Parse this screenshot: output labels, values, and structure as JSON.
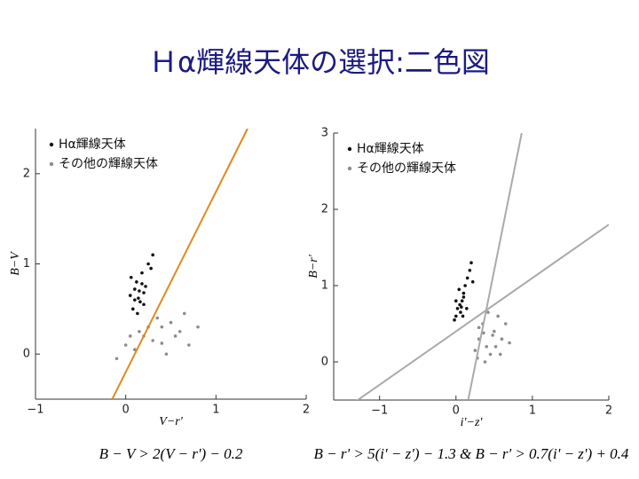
{
  "title": "Ｈα輝線天体の選択:二色図",
  "chart_data": [
    {
      "type": "scatter",
      "xlabel": "V−r'",
      "ylabel": "B−V",
      "xlim": [
        -1,
        2
      ],
      "ylim": [
        -0.5,
        2.5
      ],
      "xticks": [
        {
          "value": -1,
          "label": "−1"
        },
        0,
        1,
        2
      ],
      "yticks": [
        0,
        1,
        2
      ],
      "legend": "upper left",
      "series": [
        {
          "name": "Hα輝線天体",
          "color": "#111111",
          "x": [
            0.1,
            0.15,
            0.2,
            0.05,
            0.12,
            0.18,
            0.22,
            0.08,
            0.14,
            0.25,
            0.1,
            0.16,
            0.2,
            0.06,
            0.13,
            0.28,
            0.3,
            0.18
          ],
          "values": [
            0.6,
            0.7,
            0.55,
            0.65,
            0.8,
            0.9,
            0.75,
            0.5,
            0.62,
            1.0,
            0.72,
            0.58,
            0.68,
            0.85,
            0.45,
            0.95,
            1.1,
            0.78
          ]
        },
        {
          "name": "その他の輝線天体",
          "color": "#8c8c8c",
          "x": [
            0.0,
            0.2,
            0.4,
            0.6,
            0.3,
            0.1,
            0.5,
            0.7,
            0.25,
            0.45,
            -0.1,
            0.35,
            0.55,
            0.15,
            0.8,
            0.05,
            0.65,
            0.4
          ],
          "values": [
            0.1,
            0.2,
            0.3,
            0.25,
            0.15,
            0.05,
            0.35,
            0.1,
            0.3,
            0.0,
            -0.05,
            0.4,
            0.2,
            0.25,
            0.3,
            0.2,
            0.45,
            0.12
          ]
        }
      ],
      "lines": [
        {
          "color": "#e08a1e",
          "x": [
            -0.15,
            1.35
          ],
          "values": [
            -0.5,
            2.5
          ]
        }
      ],
      "annotation": "B − V > 2(V − r') − 0.2"
    },
    {
      "type": "scatter",
      "xlabel": "i'−z'",
      "ylabel": "B−r'",
      "xlim": [
        -1.6,
        2
      ],
      "ylim": [
        -0.5,
        3
      ],
      "xticks": [
        {
          "value": -1,
          "label": "−1"
        },
        0,
        1,
        2
      ],
      "yticks": [
        0,
        1,
        2,
        3
      ],
      "legend": "upper left",
      "series": [
        {
          "name": "Hα輝線天体",
          "color": "#111111",
          "x": [
            0.0,
            0.05,
            0.1,
            0.02,
            0.08,
            0.12,
            0.15,
            -0.02,
            0.06,
            0.18,
            0.1,
            0.04,
            0.14,
            0.2,
            0.0,
            0.09,
            0.22,
            0.07
          ],
          "values": [
            0.6,
            0.75,
            0.9,
            0.7,
            0.8,
            1.0,
            1.1,
            0.55,
            0.65,
            1.2,
            0.85,
            0.95,
            0.7,
            1.3,
            0.8,
            0.6,
            1.05,
            0.72
          ]
        },
        {
          "name": "その他の輝線天体",
          "color": "#8c8c8c",
          "x": [
            0.3,
            0.4,
            0.5,
            0.35,
            0.45,
            0.6,
            0.25,
            0.55,
            0.7,
            0.38,
            0.48,
            0.3,
            0.65,
            0.42,
            0.52,
            0.28,
            0.58,
            0.36
          ],
          "values": [
            0.3,
            0.2,
            0.4,
            0.5,
            0.1,
            0.3,
            0.15,
            0.6,
            0.25,
            0.0,
            0.35,
            0.45,
            0.5,
            0.65,
            0.2,
            0.05,
            0.1,
            0.38
          ]
        }
      ],
      "lines": [
        {
          "color": "#aaaaaa",
          "x": [
            0.16,
            0.86
          ],
          "values": [
            -0.5,
            3
          ]
        },
        {
          "color": "#aaaaaa",
          "x": [
            -1.3,
            2
          ],
          "values": [
            -0.51,
            1.8
          ]
        }
      ],
      "annotation": "B − r' > 5(i' − z') − 1.3 & B − r' > 0.7(i' − z') + 0.4"
    }
  ]
}
